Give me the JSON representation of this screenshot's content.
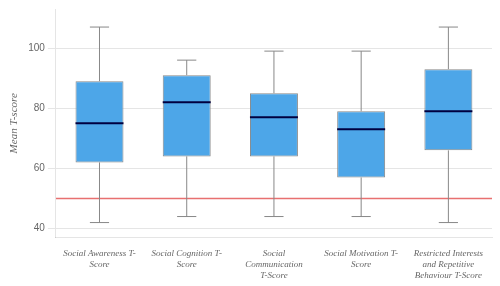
{
  "chart_data": {
    "type": "box",
    "categories": [
      "Social Awareness T-\nScore",
      "Social Cognition T-\nScore",
      "Social\nCommunication\nT-Score",
      "Social Motivation T-\nScore",
      "Restricted Interests\nand Repetitive\nBehaviour T-Score"
    ],
    "boxes": [
      {
        "whislo": 42,
        "q1": 62,
        "med": 75,
        "q3": 89,
        "whishi": 107
      },
      {
        "whislo": 44,
        "q1": 64,
        "med": 82,
        "q3": 91,
        "whishi": 96
      },
      {
        "whislo": 44,
        "q1": 64,
        "med": 77,
        "q3": 85,
        "whishi": 99
      },
      {
        "whislo": 44,
        "q1": 57,
        "med": 73,
        "q3": 79,
        "whishi": 99
      },
      {
        "whislo": 42,
        "q1": 66,
        "med": 79,
        "q3": 93,
        "whishi": 107
      }
    ],
    "color": "#4da6e8",
    "reference_line": {
      "value": 50,
      "color": "#e87070"
    },
    "ylabel": "Mean T-score",
    "ylim": [
      37,
      113
    ],
    "yticks": [
      40,
      60,
      80,
      100
    ],
    "grid": true
  }
}
